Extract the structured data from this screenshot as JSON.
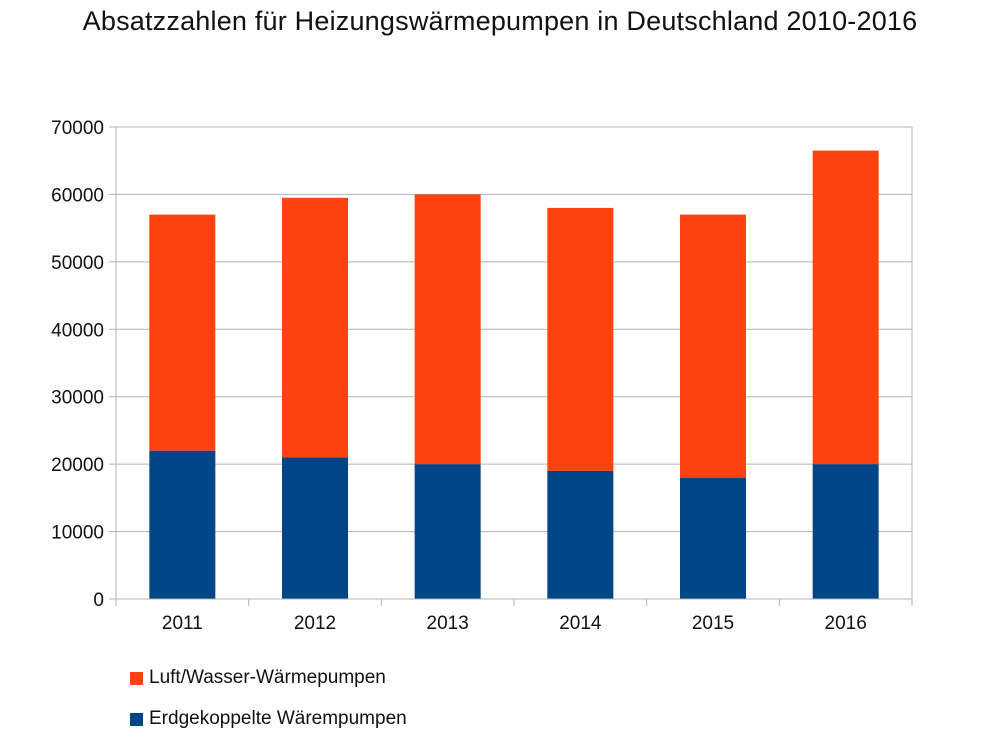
{
  "chart_data": {
    "type": "bar",
    "stacked": true,
    "title": "Absatzzahlen für Heizungswärmepumpen in Deutschland 2010-2016",
    "xlabel": "",
    "ylabel": "",
    "categories": [
      "2011",
      "2012",
      "2013",
      "2014",
      "2015",
      "2016"
    ],
    "ylim": [
      0,
      70000
    ],
    "yticks": [
      "0",
      "10000",
      "20000",
      "30000",
      "40000",
      "50000",
      "60000",
      "70000"
    ],
    "grid": true,
    "legend_position": "bottom-left",
    "series": [
      {
        "name": "Erdgekoppelte Wärempumpen",
        "color": "#004586",
        "values": [
          22000,
          21000,
          20000,
          19000,
          18000,
          20000
        ]
      },
      {
        "name": "Luft/Wasser-Wärmepumpen",
        "color": "#ff420e",
        "values": [
          35000,
          38500,
          40000,
          39000,
          39000,
          46500
        ]
      }
    ]
  }
}
